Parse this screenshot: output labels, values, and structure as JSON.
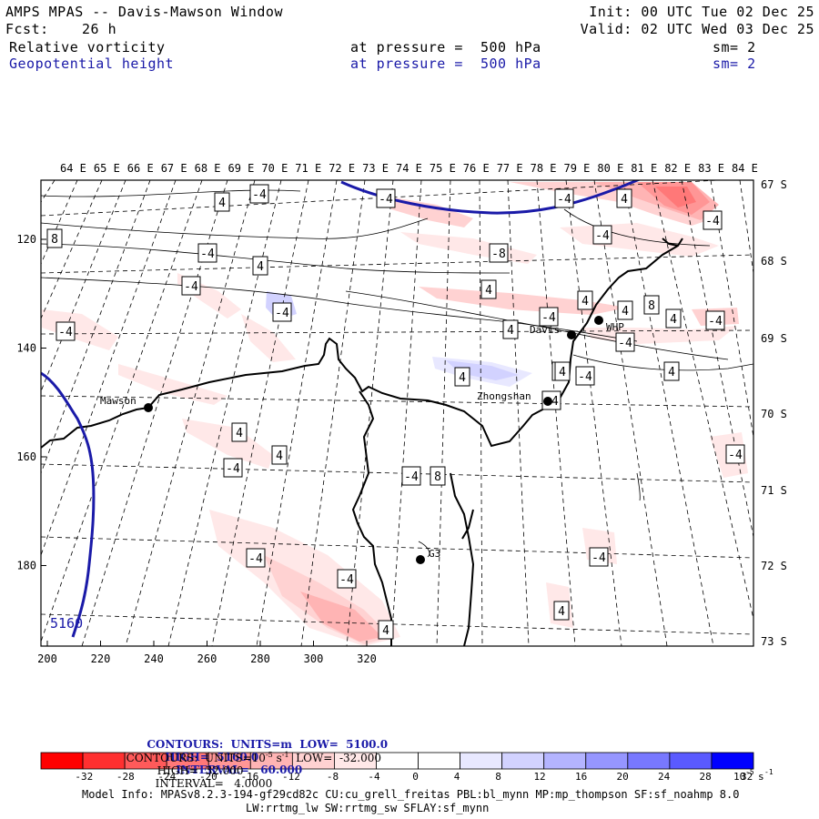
{
  "header": {
    "title": "AMPS MPAS -- Davis-Mawson Window",
    "init": "Init: 00 UTC Tue 02 Dec 25",
    "fcst_label": "Fcst:",
    "fcst_value": "26 h",
    "valid": "Valid: 02 UTC Wed 03 Dec 25",
    "field1": "Relative vorticity",
    "field2": "Geopotential height",
    "pressure1": "at pressure =  500 hPa",
    "pressure2": "at pressure =  500 hPa",
    "sm1": "sm= 2",
    "sm2": "sm= 2"
  },
  "map": {
    "lon_labels": [
      "64 E",
      "65 E",
      "66 E",
      "67 E",
      "68 E",
      "69 E",
      "70 E",
      "71 E",
      "72 E",
      "73 E",
      "74 E",
      "75 E",
      "76 E",
      "77 E",
      "78 E",
      "79 E",
      "80 E",
      "81 E",
      "82 E",
      "83 E",
      "84 E"
    ],
    "lat_labels": [
      "67 S",
      "68 S",
      "69 S",
      "70 S",
      "71 S",
      "72 S",
      "73 S"
    ],
    "x_ticks": [
      "200",
      "220",
      "240",
      "260",
      "280",
      "300",
      "320"
    ],
    "y_ticks": [
      "120",
      "140",
      "160",
      "180"
    ],
    "stations": [
      {
        "name": "Mawson"
      },
      {
        "name": "Davis"
      },
      {
        "name": "WHP"
      },
      {
        "name": "Zhongshan"
      },
      {
        "name": "G3"
      }
    ],
    "height_label": "5160",
    "vort_labels": [
      "4",
      "-4",
      "-4",
      "-4",
      "4",
      "-4",
      "8",
      "-4",
      "-8",
      "-4",
      "4",
      "-4",
      "4",
      "-4",
      "-4",
      "8",
      "4",
      "-4",
      "-4",
      "4",
      "4",
      "8",
      "-4",
      "4",
      "-4",
      "8",
      "-4",
      "4",
      "-4",
      "4",
      "4",
      "4",
      "4",
      "-4",
      "-4",
      "-4",
      "4",
      "-4",
      "4",
      "-4"
    ]
  },
  "footer": {
    "contours1_prefix": "CONTOURS:  UNITS=m  LOW=  5100.0",
    "contours1_high": "HIGH=  5160.0",
    "contours1_interval": "INTERVAL=   60.000",
    "contours2_prefix": "CONTOURS:  UNITS=10",
    "contours2_exp": "-5",
    "contours2_mid": " s",
    "contours2_exp2": "-1",
    "contours2_rest": "  LOW=  -32.000",
    "contours2_high": "HIGH=  32.000",
    "contours2_interval": "INTERVAL=   4.0000",
    "colorbar_ticks": [
      "-32",
      "-28",
      "-24",
      "-20",
      "-16",
      "-12",
      "-8",
      "-4",
      "0",
      "4",
      "8",
      "12",
      "16",
      "20",
      "24",
      "28",
      "32"
    ],
    "colorbar_unit": "10",
    "colorbar_unit_exp": "-5",
    "colorbar_unit_s": "s",
    "colorbar_unit_exp2": "-1",
    "model_info_line1": "Model Info: MPASv8.2.3-194-gf29cd82c CU:cu_grell_freitas PBL:bl_mynn MP:mp_thompson SF:sf_noahmp 8.0",
    "model_info_line2": "LW:rrtmg_lw SW:rrtmg_sw SFLAY:sf_mynn"
  },
  "colors": {
    "colorbar": [
      "#ff0000",
      "#ff3030",
      "#ff5a5a",
      "#ff7878",
      "#ff9696",
      "#ffb4b4",
      "#ffd2d2",
      "#ffe8e8",
      "#ffffff",
      "#ffffff",
      "#e8e8ff",
      "#d2d2ff",
      "#b4b4ff",
      "#9696ff",
      "#7878ff",
      "#5a5aff",
      "#0000ff"
    ],
    "height_contour": "#1a1aa8"
  }
}
